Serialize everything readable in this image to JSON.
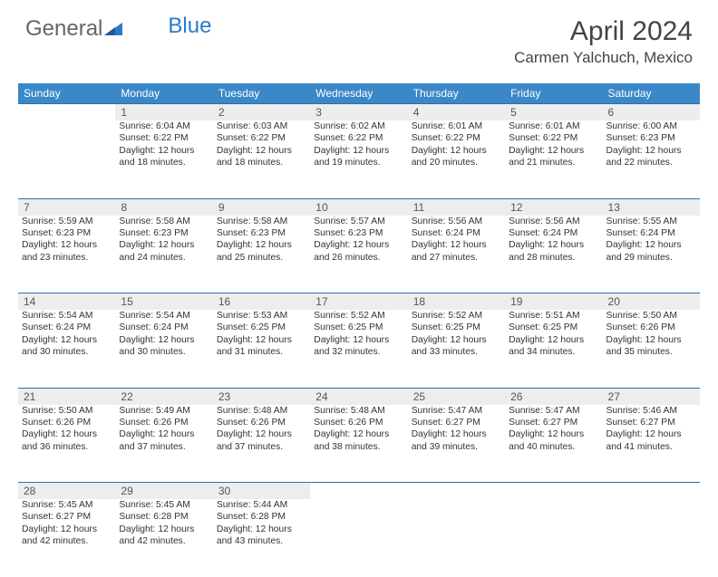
{
  "logo": {
    "part1": "General",
    "part2": "Blue"
  },
  "title": "April 2024",
  "location": "Carmen Yalchuch, Mexico",
  "colors": {
    "header_bg": "#3a88c8",
    "header_text": "#ffffff",
    "daynum_bg": "#ededed",
    "row_border": "#2f6fa8",
    "logo_blue": "#2b7ac7",
    "logo_gray": "#666666"
  },
  "weekdays": [
    "Sunday",
    "Monday",
    "Tuesday",
    "Wednesday",
    "Thursday",
    "Friday",
    "Saturday"
  ],
  "weeks": [
    {
      "nums": [
        "",
        "1",
        "2",
        "3",
        "4",
        "5",
        "6"
      ],
      "cells": [
        null,
        {
          "sunrise": "6:04 AM",
          "sunset": "6:22 PM",
          "daylight": "12 hours and 18 minutes."
        },
        {
          "sunrise": "6:03 AM",
          "sunset": "6:22 PM",
          "daylight": "12 hours and 18 minutes."
        },
        {
          "sunrise": "6:02 AM",
          "sunset": "6:22 PM",
          "daylight": "12 hours and 19 minutes."
        },
        {
          "sunrise": "6:01 AM",
          "sunset": "6:22 PM",
          "daylight": "12 hours and 20 minutes."
        },
        {
          "sunrise": "6:01 AM",
          "sunset": "6:22 PM",
          "daylight": "12 hours and 21 minutes."
        },
        {
          "sunrise": "6:00 AM",
          "sunset": "6:23 PM",
          "daylight": "12 hours and 22 minutes."
        }
      ]
    },
    {
      "nums": [
        "7",
        "8",
        "9",
        "10",
        "11",
        "12",
        "13"
      ],
      "cells": [
        {
          "sunrise": "5:59 AM",
          "sunset": "6:23 PM",
          "daylight": "12 hours and 23 minutes."
        },
        {
          "sunrise": "5:58 AM",
          "sunset": "6:23 PM",
          "daylight": "12 hours and 24 minutes."
        },
        {
          "sunrise": "5:58 AM",
          "sunset": "6:23 PM",
          "daylight": "12 hours and 25 minutes."
        },
        {
          "sunrise": "5:57 AM",
          "sunset": "6:23 PM",
          "daylight": "12 hours and 26 minutes."
        },
        {
          "sunrise": "5:56 AM",
          "sunset": "6:24 PM",
          "daylight": "12 hours and 27 minutes."
        },
        {
          "sunrise": "5:56 AM",
          "sunset": "6:24 PM",
          "daylight": "12 hours and 28 minutes."
        },
        {
          "sunrise": "5:55 AM",
          "sunset": "6:24 PM",
          "daylight": "12 hours and 29 minutes."
        }
      ]
    },
    {
      "nums": [
        "14",
        "15",
        "16",
        "17",
        "18",
        "19",
        "20"
      ],
      "cells": [
        {
          "sunrise": "5:54 AM",
          "sunset": "6:24 PM",
          "daylight": "12 hours and 30 minutes."
        },
        {
          "sunrise": "5:54 AM",
          "sunset": "6:24 PM",
          "daylight": "12 hours and 30 minutes."
        },
        {
          "sunrise": "5:53 AM",
          "sunset": "6:25 PM",
          "daylight": "12 hours and 31 minutes."
        },
        {
          "sunrise": "5:52 AM",
          "sunset": "6:25 PM",
          "daylight": "12 hours and 32 minutes."
        },
        {
          "sunrise": "5:52 AM",
          "sunset": "6:25 PM",
          "daylight": "12 hours and 33 minutes."
        },
        {
          "sunrise": "5:51 AM",
          "sunset": "6:25 PM",
          "daylight": "12 hours and 34 minutes."
        },
        {
          "sunrise": "5:50 AM",
          "sunset": "6:26 PM",
          "daylight": "12 hours and 35 minutes."
        }
      ]
    },
    {
      "nums": [
        "21",
        "22",
        "23",
        "24",
        "25",
        "26",
        "27"
      ],
      "cells": [
        {
          "sunrise": "5:50 AM",
          "sunset": "6:26 PM",
          "daylight": "12 hours and 36 minutes."
        },
        {
          "sunrise": "5:49 AM",
          "sunset": "6:26 PM",
          "daylight": "12 hours and 37 minutes."
        },
        {
          "sunrise": "5:48 AM",
          "sunset": "6:26 PM",
          "daylight": "12 hours and 37 minutes."
        },
        {
          "sunrise": "5:48 AM",
          "sunset": "6:26 PM",
          "daylight": "12 hours and 38 minutes."
        },
        {
          "sunrise": "5:47 AM",
          "sunset": "6:27 PM",
          "daylight": "12 hours and 39 minutes."
        },
        {
          "sunrise": "5:47 AM",
          "sunset": "6:27 PM",
          "daylight": "12 hours and 40 minutes."
        },
        {
          "sunrise": "5:46 AM",
          "sunset": "6:27 PM",
          "daylight": "12 hours and 41 minutes."
        }
      ]
    },
    {
      "nums": [
        "28",
        "29",
        "30",
        "",
        "",
        "",
        ""
      ],
      "cells": [
        {
          "sunrise": "5:45 AM",
          "sunset": "6:27 PM",
          "daylight": "12 hours and 42 minutes."
        },
        {
          "sunrise": "5:45 AM",
          "sunset": "6:28 PM",
          "daylight": "12 hours and 42 minutes."
        },
        {
          "sunrise": "5:44 AM",
          "sunset": "6:28 PM",
          "daylight": "12 hours and 43 minutes."
        },
        null,
        null,
        null,
        null
      ]
    }
  ],
  "labels": {
    "sunrise": "Sunrise:",
    "sunset": "Sunset:",
    "daylight": "Daylight:"
  }
}
